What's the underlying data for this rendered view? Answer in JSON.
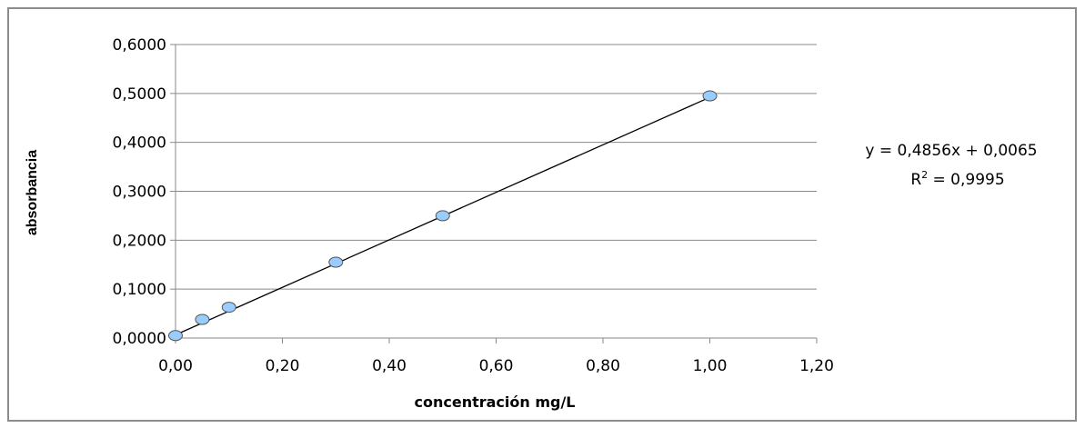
{
  "chart_data": {
    "type": "scatter",
    "xlabel": "concentración mg/L",
    "ylabel": "absorbancia",
    "xlim": [
      0,
      1.2
    ],
    "ylim": [
      0,
      0.6
    ],
    "x_ticks": [
      "0,00",
      "0,20",
      "0,40",
      "0,60",
      "0,80",
      "1,00",
      "1,20"
    ],
    "y_ticks": [
      "0,0000",
      "0,1000",
      "0,2000",
      "0,3000",
      "0,4000",
      "0,5000",
      "0,6000"
    ],
    "x_tick_values": [
      0,
      0.2,
      0.4,
      0.6,
      0.8,
      1.0,
      1.2
    ],
    "y_tick_values": [
      0,
      0.1,
      0.2,
      0.3,
      0.4,
      0.5,
      0.6
    ],
    "grid": "horizontal",
    "series": [
      {
        "x": [
          0.0,
          0.05,
          0.1,
          0.3,
          0.5,
          1.0
        ],
        "y": [
          0.005,
          0.038,
          0.063,
          0.155,
          0.25,
          0.495
        ],
        "color": "#99ccff"
      }
    ],
    "trendline": {
      "type": "linear",
      "slope": 0.4856,
      "intercept": 0.0065,
      "equation": "y = 0,4856x + 0,0065",
      "r2_prefix": "R",
      "r2_sup": "2",
      "r2_value": " = 0,9995"
    }
  }
}
